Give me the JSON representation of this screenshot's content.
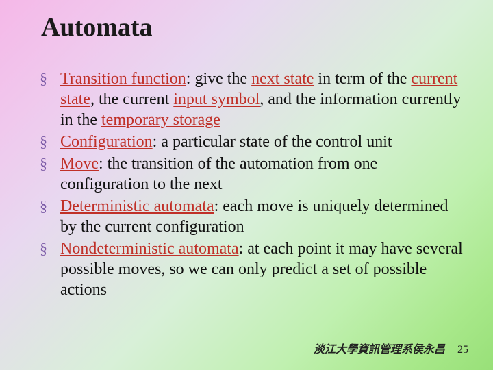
{
  "title": "Automata",
  "bullets": [
    {
      "segments": [
        {
          "text": "Transition function",
          "term": true
        },
        {
          "text": ": give the ",
          "term": false
        },
        {
          "text": "next state",
          "term": true
        },
        {
          "text": " in term of the ",
          "term": false
        },
        {
          "text": "current state",
          "term": true
        },
        {
          "text": ", the current ",
          "term": false
        },
        {
          "text": "input symbol",
          "term": true
        },
        {
          "text": ", and the information currently in the ",
          "term": false
        },
        {
          "text": "temporary storage",
          "term": true
        }
      ]
    },
    {
      "segments": [
        {
          "text": "Configuration",
          "term": true
        },
        {
          "text": ": a particular state of the control unit",
          "term": false
        }
      ]
    },
    {
      "segments": [
        {
          "text": "Move",
          "term": true
        },
        {
          "text": ": the transition of the automation from one configuration to the next",
          "term": false
        }
      ]
    },
    {
      "segments": [
        {
          "text": "Deterministic automata",
          "term": true
        },
        {
          "text": ": each move is uniquely determined by the current configuration",
          "term": false
        }
      ]
    },
    {
      "segments": [
        {
          "text": "Nondeterministic automata",
          "term": true
        },
        {
          "text": ": at each point it may have several possible moves, so we can only predict a set of possible actions",
          "term": false
        }
      ]
    }
  ],
  "footer": {
    "org": "淡江大學資訊管理系侯永昌",
    "page": "25"
  },
  "style": {
    "bullet_glyph": "§",
    "title_fontsize": 38,
    "body_fontsize": 24,
    "line_height": 30,
    "term_color": "#c03028",
    "bullet_color": "#7a5aa6",
    "text_color": "#111111",
    "bg_gradient_stops": [
      "#f5b8e8",
      "#f0c8ed",
      "#e8d8f0",
      "#d8f0d8",
      "#c0f0b0",
      "#a8e88a",
      "#98e078"
    ],
    "font_family": "Times New Roman"
  }
}
